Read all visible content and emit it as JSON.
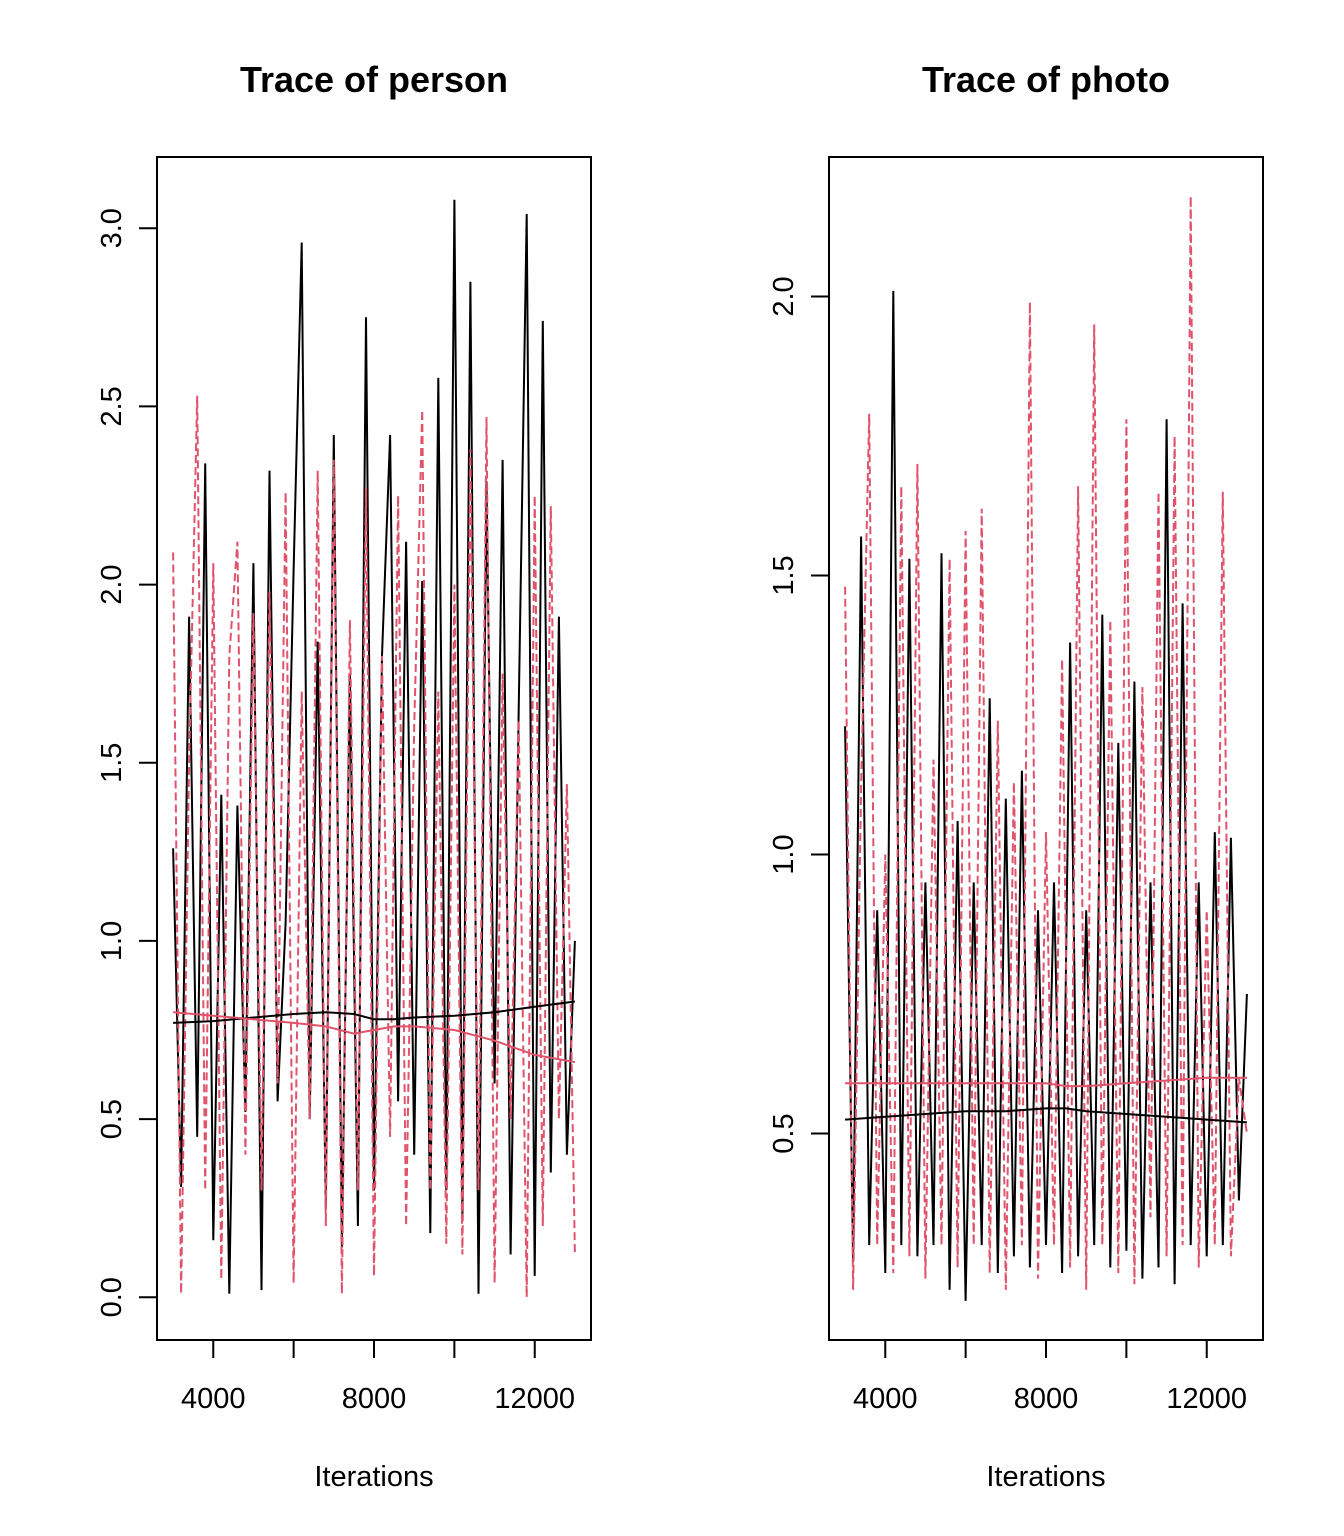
{
  "chart_data": [
    {
      "type": "line",
      "title": "Trace of person",
      "xlabel": "Iterations",
      "ylabel": "",
      "xlim": [
        2600,
        13400
      ],
      "ylim": [
        -0.12,
        3.2
      ],
      "xticks": [
        4000,
        6000,
        8000,
        10000,
        12000
      ],
      "xtick_labels": [
        "4000",
        "",
        "8000",
        "",
        "12000"
      ],
      "yticks": [
        0.0,
        0.5,
        1.0,
        1.5,
        2.0,
        2.5,
        3.0
      ],
      "ytick_labels": [
        "0.0",
        "0.5",
        "1.0",
        "1.5",
        "2.0",
        "2.5",
        "3.0"
      ],
      "grid": false,
      "x_start": 3000,
      "x_step": 200,
      "series": [
        {
          "color": "#000000",
          "style": "solid",
          "values": [
            1.26,
            0.31,
            1.91,
            0.45,
            2.34,
            0.16,
            1.41,
            0.01,
            1.38,
            0.52,
            2.06,
            0.02,
            2.32,
            0.55,
            1.05,
            2.04,
            2.96,
            0.5,
            1.84,
            0.25,
            2.42,
            0.14,
            1.75,
            0.2,
            2.75,
            0.3,
            1.8,
            2.42,
            0.55,
            2.12,
            0.4,
            2.01,
            0.18,
            2.58,
            0.3,
            3.08,
            0.22,
            2.85,
            0.01,
            2.29,
            0.6,
            2.35,
            0.12,
            1.65,
            3.04,
            0.06,
            2.74,
            0.35,
            1.91,
            0.4,
            1.0
          ]
        },
        {
          "color": "#DF536B",
          "style": "dashed",
          "values": [
            2.09,
            0.01,
            1.5,
            2.53,
            0.3,
            2.06,
            0.05,
            1.8,
            2.12,
            0.4,
            1.92,
            0.3,
            1.98,
            0.6,
            2.26,
            0.04,
            1.7,
            0.5,
            2.32,
            0.2,
            2.35,
            0.01,
            1.9,
            0.3,
            2.27,
            0.06,
            1.8,
            0.45,
            2.25,
            0.2,
            1.6,
            2.49,
            0.3,
            1.7,
            0.15,
            2.0,
            0.12,
            2.38,
            0.3,
            2.47,
            0.04,
            1.75,
            0.5,
            1.62,
            0.0,
            2.25,
            0.2,
            2.22,
            0.5,
            1.44,
            0.12
          ]
        }
      ],
      "smooth": [
        {
          "color": "#000000",
          "x": [
            3000,
            4000,
            5000,
            6000,
            6800,
            7500,
            8000,
            8500,
            9000,
            10000,
            11000,
            12000,
            13000
          ],
          "y": [
            0.77,
            0.775,
            0.785,
            0.795,
            0.8,
            0.795,
            0.78,
            0.78,
            0.785,
            0.79,
            0.8,
            0.815,
            0.83
          ]
        },
        {
          "color": "#DF536B",
          "x": [
            3000,
            4000,
            5000,
            6000,
            6800,
            7500,
            8000,
            8500,
            9000,
            10000,
            11000,
            12000,
            13000
          ],
          "y": [
            0.8,
            0.79,
            0.78,
            0.77,
            0.76,
            0.74,
            0.75,
            0.76,
            0.76,
            0.75,
            0.72,
            0.68,
            0.66
          ]
        }
      ]
    },
    {
      "type": "line",
      "title": "Trace of photo",
      "xlabel": "Iterations",
      "ylabel": "",
      "xlim": [
        2600,
        13400
      ],
      "ylim": [
        0.13,
        2.25
      ],
      "xticks": [
        4000,
        6000,
        8000,
        10000,
        12000
      ],
      "xtick_labels": [
        "4000",
        "",
        "8000",
        "",
        "12000"
      ],
      "yticks": [
        0.5,
        1.0,
        1.5,
        2.0
      ],
      "ytick_labels": [
        "0.5",
        "1.0",
        "1.5",
        "2.0"
      ],
      "grid": false,
      "x_start": 3000,
      "x_step": 200,
      "series": [
        {
          "color": "#000000",
          "style": "solid",
          "values": [
            1.23,
            0.27,
            1.57,
            0.3,
            0.9,
            0.25,
            2.01,
            0.3,
            1.53,
            0.28,
            0.95,
            0.3,
            1.54,
            0.22,
            1.06,
            0.2,
            0.95,
            0.3,
            1.28,
            0.25,
            1.1,
            0.28,
            1.15,
            0.26,
            0.9,
            0.3,
            0.95,
            0.25,
            1.38,
            0.28,
            0.9,
            0.3,
            1.43,
            0.26,
            1.2,
            0.29,
            1.31,
            0.24,
            0.95,
            0.26,
            1.78,
            0.23,
            1.45,
            0.3,
            0.95,
            0.28,
            1.04,
            0.3,
            1.03,
            0.38,
            0.75
          ]
        },
        {
          "color": "#DF536B",
          "style": "dashed",
          "values": [
            1.48,
            0.22,
            1.12,
            1.79,
            0.3,
            1.0,
            0.25,
            1.66,
            0.28,
            1.7,
            0.24,
            1.17,
            0.3,
            1.53,
            0.26,
            1.58,
            0.3,
            1.62,
            0.25,
            1.24,
            0.22,
            1.13,
            0.3,
            1.99,
            0.24,
            1.04,
            0.3,
            1.35,
            0.26,
            1.66,
            0.22,
            1.95,
            0.3,
            1.42,
            0.25,
            1.78,
            0.23,
            1.3,
            0.35,
            1.65,
            0.28,
            1.75,
            0.3,
            2.18,
            0.26,
            0.9,
            0.3,
            1.65,
            0.28,
            0.6,
            0.5
          ]
        }
      ],
      "smooth": [
        {
          "color": "#000000",
          "x": [
            3000,
            4000,
            5000,
            6000,
            7000,
            8000,
            8500,
            9000,
            10000,
            11000,
            12000,
            13000
          ],
          "y": [
            0.525,
            0.53,
            0.535,
            0.54,
            0.54,
            0.545,
            0.545,
            0.54,
            0.535,
            0.53,
            0.525,
            0.52
          ]
        },
        {
          "color": "#DF536B",
          "x": [
            3000,
            4000,
            5000,
            6000,
            7000,
            8000,
            8500,
            9000,
            10000,
            11000,
            12000,
            13000
          ],
          "y": [
            0.59,
            0.59,
            0.59,
            0.59,
            0.59,
            0.59,
            0.585,
            0.585,
            0.59,
            0.595,
            0.6,
            0.6
          ]
        }
      ]
    }
  ]
}
